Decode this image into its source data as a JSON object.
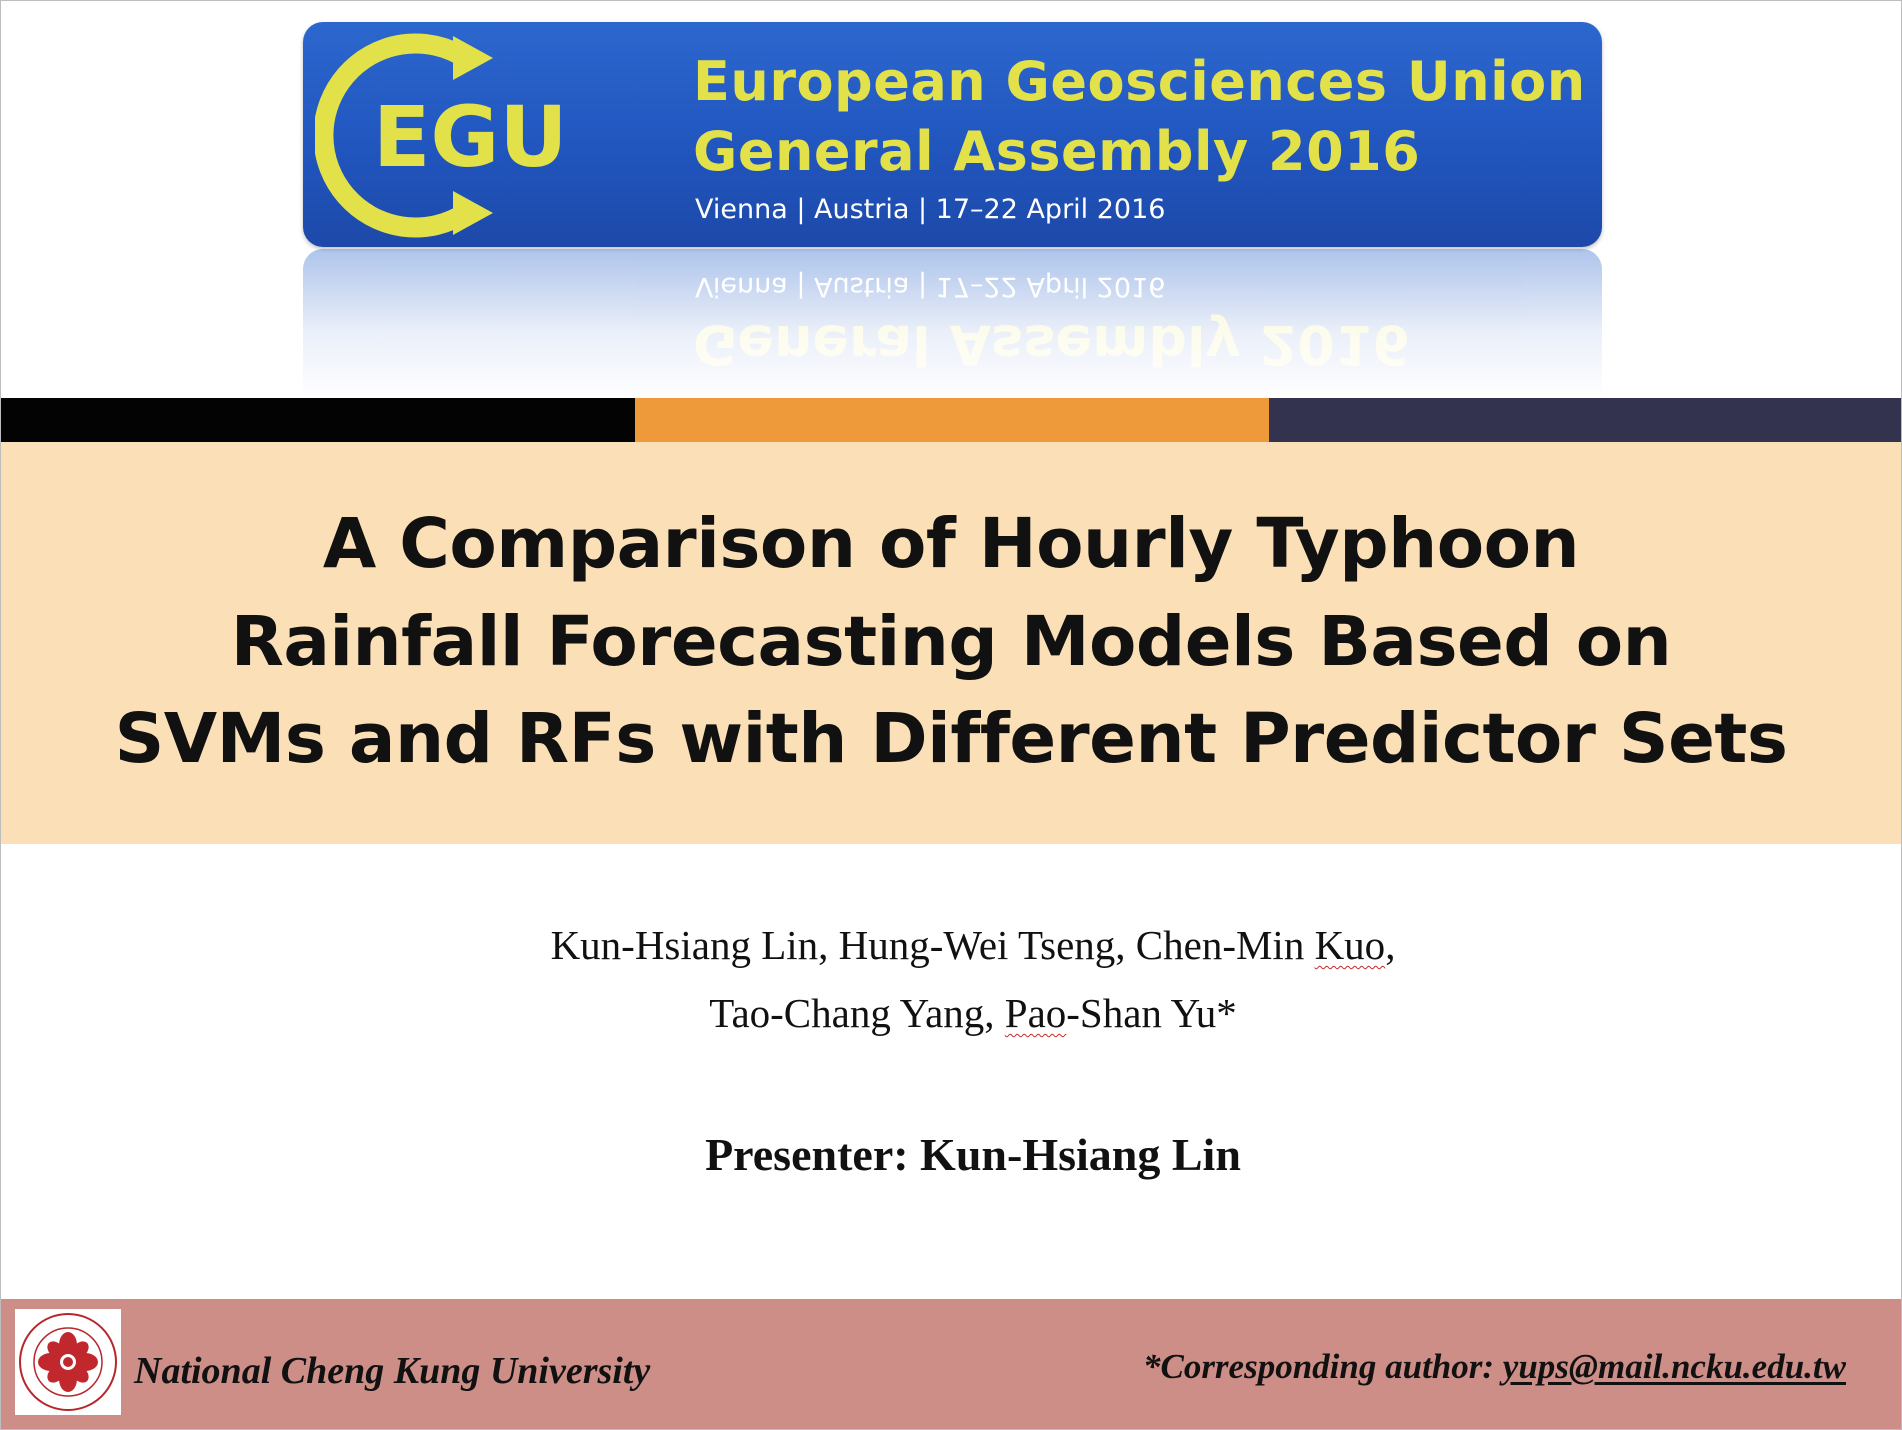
{
  "banner": {
    "logo_text": "EGU",
    "line1": "European Geosciences Union",
    "line2": "General Assembly 2016",
    "subtitle": "Vienna | Austria | 17–22 April 2016"
  },
  "colors": {
    "banner_blue": "#2156bf",
    "banner_yellow": "#e3e14a",
    "stripe_black": "#030303",
    "stripe_orange": "#ee9a3a",
    "stripe_navy": "#333350",
    "title_band": "#fbe0b7",
    "footer": "#cd8e88"
  },
  "title": {
    "lines": [
      "A Comparison of Hourly Typhoon",
      "Rainfall Forecasting Models Based on",
      "SVMs and RFs with Different Predictor Sets"
    ]
  },
  "authors": {
    "line1_prefix": "Kun-Hsiang Lin, Hung-Wei Tseng, Chen-Min ",
    "line1_flagged": "Kuo",
    "line1_suffix": ",",
    "line2_prefix": "Tao-Chang Yang, ",
    "line2_flagged": "Pao",
    "line2_suffix": "-Shan Yu*"
  },
  "presenter": "Presenter: Kun-Hsiang Lin",
  "footer": {
    "university": "National Cheng Kung University",
    "corresponding_label": "*Corresponding author: ",
    "email": "yups@mail.ncku.edu.tw",
    "seal_icon": "ncku-seal-icon"
  }
}
